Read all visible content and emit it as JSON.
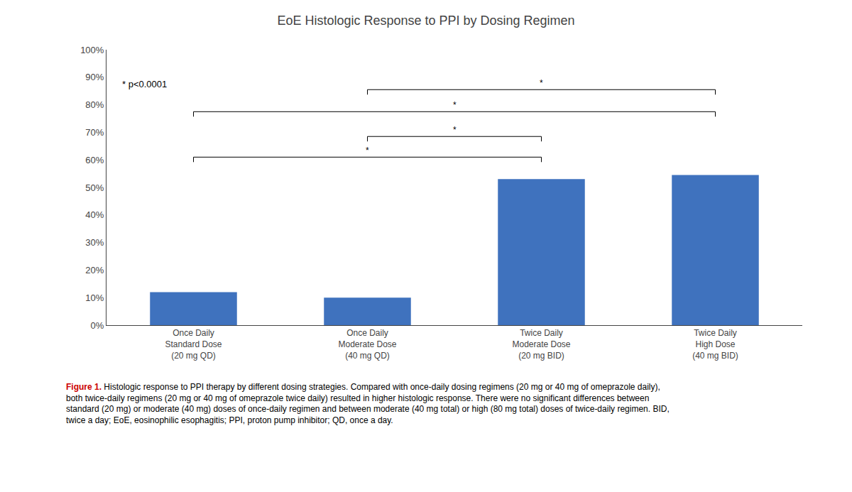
{
  "chart_data": {
    "type": "bar",
    "title": "EoE Histologic Response to PPI by Dosing Regimen",
    "categories": [
      "Once Daily\nStandard Dose\n(20 mg QD)",
      "Once Daily\nModerate Dose\n(40 mg QD)",
      "Twice Daily\nModerate Dose\n(20 mg BID)",
      "Twice Daily\nHigh Dose\n(40 mg BID)"
    ],
    "values": [
      0.12,
      0.1,
      0.53,
      0.545
    ],
    "color": "#3f72be",
    "ylim": [
      0,
      1.0
    ],
    "yticks": [
      {
        "value": 0.0,
        "label": "0%"
      },
      {
        "value": 0.1,
        "label": "10%"
      },
      {
        "value": 0.2,
        "label": "20%"
      },
      {
        "value": 0.3,
        "label": "30%"
      },
      {
        "value": 0.4,
        "label": "40%"
      },
      {
        "value": 0.5,
        "label": "50%"
      },
      {
        "value": 0.6,
        "label": "60%"
      },
      {
        "value": 0.7,
        "label": "70%"
      },
      {
        "value": 0.8,
        "label": "80%"
      },
      {
        "value": 0.9,
        "label": "90%"
      },
      {
        "value": 1.0,
        "label": "100%"
      }
    ],
    "grid": false,
    "annotations": [
      {
        "text": "* p<0.0001"
      }
    ],
    "significance_brackets": [
      {
        "x1": 0,
        "x2": 2,
        "y": 0.61,
        "label": "*"
      },
      {
        "x1": 0,
        "x2": 3,
        "y": 0.775,
        "label": "*"
      },
      {
        "x1": 1,
        "x2": 2,
        "y": 0.685,
        "label": "*"
      },
      {
        "x1": 1,
        "x2": 3,
        "y": 0.855,
        "label": "*"
      }
    ],
    "caption": [
      {
        "text": "Figure 1.",
        "color": "#cc0000"
      },
      {
        "text": " Histologic response to PPI therapy by different dosing strategies. Compared with once-daily dosing regimens (20 mg or 40 mg of omeprazole daily), both twice-daily regimens (20 mg or 40 mg of omeprazole twice daily) resulted in higher histologic response. There were no significant differences between standard (20 mg) or moderate (40 mg) doses of once-daily regimen and between moderate (40 mg total) or high (80 mg total) doses of twice-daily regimen. BID, twice a day; EoE, eosinophilic esophagitis; PPI, proton pump inhibitor; QD, once a day."
      }
    ]
  }
}
